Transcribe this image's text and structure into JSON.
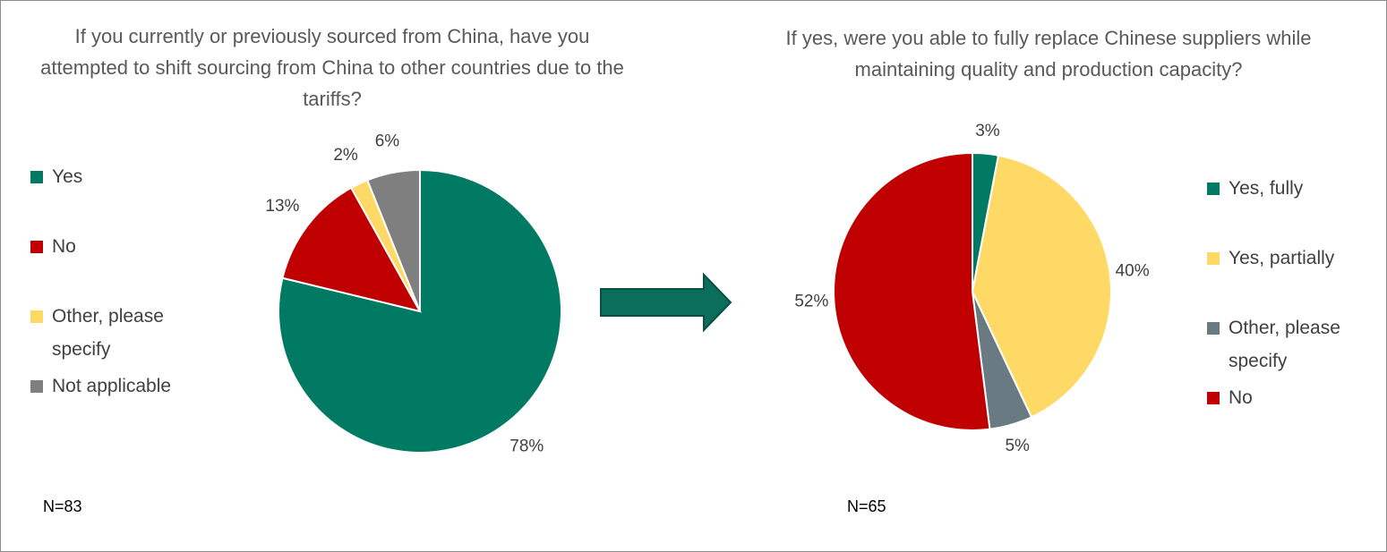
{
  "chart_data": [
    {
      "type": "pie",
      "title": "If you currently or previously sourced from China, have you attempted to shift sourcing from China to other countries due to the tariffs?",
      "categories": [
        "Yes",
        "No",
        "Other, please specify",
        "Not applicable"
      ],
      "values": [
        78,
        13,
        2,
        6
      ],
      "value_labels": [
        "78%",
        "13%",
        "2%",
        "6%"
      ],
      "colors": [
        "#007a63",
        "#c00000",
        "#ffd966",
        "#7f7f7f"
      ],
      "note": "N=83"
    },
    {
      "type": "pie",
      "title": "If yes, were you able to fully replace Chinese suppliers while maintaining quality and production capacity?",
      "categories": [
        "Yes, fully",
        "Yes, partially",
        "Other, please specify",
        "No"
      ],
      "values": [
        3,
        40,
        5,
        52
      ],
      "value_labels": [
        "3%",
        "40%",
        "5%",
        "52%"
      ],
      "colors": [
        "#007a63",
        "#ffd966",
        "#6a7a82",
        "#c00000"
      ],
      "note": "N=65"
    }
  ]
}
